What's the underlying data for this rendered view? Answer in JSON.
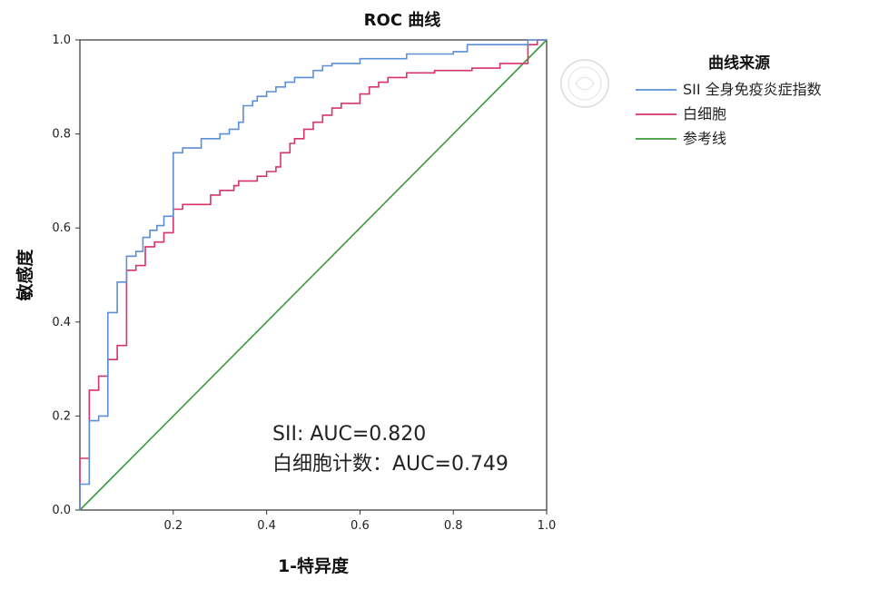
{
  "chart_data": {
    "type": "line",
    "title": "ROC 曲线",
    "xlabel": "1-特异度",
    "ylabel": "敏感度",
    "xlim": [
      0,
      1
    ],
    "ylim": [
      0,
      1
    ],
    "x_ticks": [
      "0.2",
      "0.4",
      "0.6",
      "0.8",
      "1.0"
    ],
    "y_ticks": [
      "0.0",
      "0.2",
      "0.4",
      "0.6",
      "0.8",
      "1.0"
    ],
    "grid": false,
    "legend": {
      "title": "曲线来源",
      "placement": "right"
    },
    "series": [
      {
        "name": "SII 全身免疫炎症指数",
        "color": "#5b8fd6",
        "points": [
          [
            0,
            0
          ],
          [
            0,
            0.055
          ],
          [
            0.02,
            0.055
          ],
          [
            0.02,
            0.19
          ],
          [
            0.04,
            0.19
          ],
          [
            0.04,
            0.2
          ],
          [
            0.06,
            0.2
          ],
          [
            0.06,
            0.42
          ],
          [
            0.08,
            0.42
          ],
          [
            0.08,
            0.485
          ],
          [
            0.1,
            0.485
          ],
          [
            0.1,
            0.54
          ],
          [
            0.12,
            0.54
          ],
          [
            0.12,
            0.55
          ],
          [
            0.135,
            0.55
          ],
          [
            0.135,
            0.58
          ],
          [
            0.15,
            0.58
          ],
          [
            0.15,
            0.595
          ],
          [
            0.165,
            0.595
          ],
          [
            0.165,
            0.605
          ],
          [
            0.18,
            0.605
          ],
          [
            0.18,
            0.625
          ],
          [
            0.2,
            0.625
          ],
          [
            0.2,
            0.76
          ],
          [
            0.22,
            0.76
          ],
          [
            0.22,
            0.77
          ],
          [
            0.26,
            0.77
          ],
          [
            0.26,
            0.79
          ],
          [
            0.3,
            0.79
          ],
          [
            0.3,
            0.8
          ],
          [
            0.32,
            0.8
          ],
          [
            0.32,
            0.81
          ],
          [
            0.34,
            0.81
          ],
          [
            0.34,
            0.825
          ],
          [
            0.35,
            0.825
          ],
          [
            0.35,
            0.86
          ],
          [
            0.37,
            0.86
          ],
          [
            0.37,
            0.87
          ],
          [
            0.38,
            0.87
          ],
          [
            0.38,
            0.88
          ],
          [
            0.4,
            0.88
          ],
          [
            0.4,
            0.89
          ],
          [
            0.42,
            0.89
          ],
          [
            0.42,
            0.9
          ],
          [
            0.44,
            0.9
          ],
          [
            0.44,
            0.91
          ],
          [
            0.46,
            0.91
          ],
          [
            0.46,
            0.92
          ],
          [
            0.5,
            0.92
          ],
          [
            0.5,
            0.935
          ],
          [
            0.52,
            0.935
          ],
          [
            0.52,
            0.945
          ],
          [
            0.54,
            0.945
          ],
          [
            0.54,
            0.95
          ],
          [
            0.6,
            0.95
          ],
          [
            0.6,
            0.96
          ],
          [
            0.7,
            0.96
          ],
          [
            0.7,
            0.97
          ],
          [
            0.8,
            0.97
          ],
          [
            0.8,
            0.975
          ],
          [
            0.83,
            0.975
          ],
          [
            0.83,
            0.99
          ],
          [
            0.96,
            0.99
          ],
          [
            0.96,
            1.0
          ],
          [
            1.0,
            1.0
          ]
        ]
      },
      {
        "name": "白细胞",
        "color": "#d6336c",
        "points": [
          [
            0,
            0
          ],
          [
            0,
            0.11
          ],
          [
            0.02,
            0.11
          ],
          [
            0.02,
            0.255
          ],
          [
            0.04,
            0.255
          ],
          [
            0.04,
            0.285
          ],
          [
            0.06,
            0.285
          ],
          [
            0.06,
            0.32
          ],
          [
            0.08,
            0.32
          ],
          [
            0.08,
            0.35
          ],
          [
            0.1,
            0.35
          ],
          [
            0.1,
            0.51
          ],
          [
            0.12,
            0.51
          ],
          [
            0.12,
            0.52
          ],
          [
            0.14,
            0.52
          ],
          [
            0.14,
            0.56
          ],
          [
            0.16,
            0.56
          ],
          [
            0.16,
            0.57
          ],
          [
            0.18,
            0.57
          ],
          [
            0.18,
            0.59
          ],
          [
            0.2,
            0.59
          ],
          [
            0.2,
            0.64
          ],
          [
            0.22,
            0.64
          ],
          [
            0.22,
            0.65
          ],
          [
            0.28,
            0.65
          ],
          [
            0.28,
            0.67
          ],
          [
            0.3,
            0.67
          ],
          [
            0.3,
            0.68
          ],
          [
            0.33,
            0.68
          ],
          [
            0.33,
            0.69
          ],
          [
            0.34,
            0.69
          ],
          [
            0.34,
            0.7
          ],
          [
            0.38,
            0.7
          ],
          [
            0.38,
            0.71
          ],
          [
            0.4,
            0.71
          ],
          [
            0.4,
            0.72
          ],
          [
            0.42,
            0.72
          ],
          [
            0.42,
            0.73
          ],
          [
            0.43,
            0.73
          ],
          [
            0.43,
            0.76
          ],
          [
            0.45,
            0.76
          ],
          [
            0.45,
            0.78
          ],
          [
            0.46,
            0.78
          ],
          [
            0.46,
            0.79
          ],
          [
            0.48,
            0.79
          ],
          [
            0.48,
            0.81
          ],
          [
            0.5,
            0.81
          ],
          [
            0.5,
            0.825
          ],
          [
            0.52,
            0.825
          ],
          [
            0.52,
            0.84
          ],
          [
            0.54,
            0.84
          ],
          [
            0.54,
            0.855
          ],
          [
            0.56,
            0.855
          ],
          [
            0.56,
            0.865
          ],
          [
            0.6,
            0.865
          ],
          [
            0.6,
            0.885
          ],
          [
            0.62,
            0.885
          ],
          [
            0.62,
            0.9
          ],
          [
            0.64,
            0.9
          ],
          [
            0.64,
            0.91
          ],
          [
            0.66,
            0.91
          ],
          [
            0.66,
            0.92
          ],
          [
            0.7,
            0.92
          ],
          [
            0.7,
            0.93
          ],
          [
            0.76,
            0.93
          ],
          [
            0.76,
            0.935
          ],
          [
            0.84,
            0.935
          ],
          [
            0.84,
            0.94
          ],
          [
            0.9,
            0.94
          ],
          [
            0.9,
            0.95
          ],
          [
            0.96,
            0.95
          ],
          [
            0.96,
            0.99
          ],
          [
            0.98,
            0.99
          ],
          [
            0.98,
            1.0
          ],
          [
            1.0,
            1.0
          ]
        ]
      },
      {
        "name": "参考线",
        "color": "#3a9a3a",
        "points": [
          [
            0,
            0
          ],
          [
            1,
            1
          ]
        ]
      }
    ],
    "annotations": [
      "SII: AUC=0.820",
      "白细胞计数：AUC=0.749"
    ]
  }
}
